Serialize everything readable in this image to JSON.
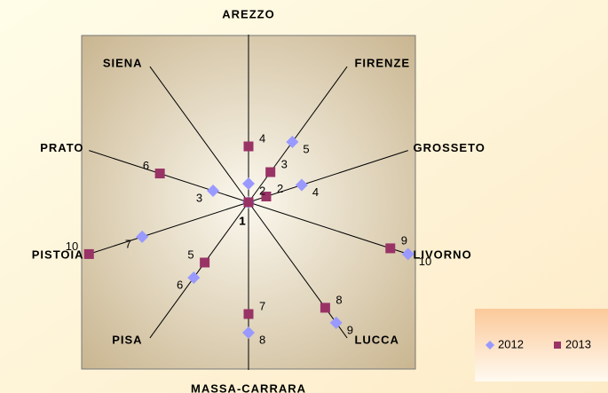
{
  "chart_data": {
    "type": "radar",
    "categories": [
      "AREZZO",
      "FIRENZE",
      "GROSSETO",
      "LIVORNO",
      "LUCCA",
      "MASSA-CARRARA",
      "PISA",
      "PISTOIA",
      "PRATO",
      "SIENA"
    ],
    "series": [
      {
        "name": "2012",
        "color": "#9999ff",
        "marker": "diamond",
        "values": [
          2,
          5,
          4,
          10,
          9,
          8,
          6,
          7,
          3,
          1
        ]
      },
      {
        "name": "2013",
        "color": "#993366",
        "marker": "square",
        "values": [
          4,
          3,
          2,
          9,
          8,
          7,
          5,
          10,
          6,
          1
        ]
      }
    ],
    "rlim": [
      1,
      10
    ],
    "legend": "bottom-right"
  }
}
